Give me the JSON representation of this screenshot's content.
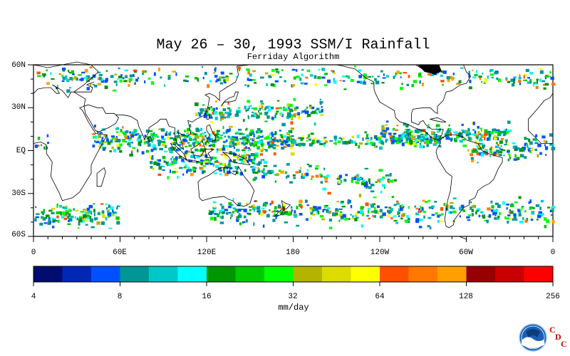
{
  "title": "May 26 – 30, 1993 SSM/I Rainfall",
  "subtitle": "Ferriday Algorithm",
  "lat_labels": [
    "60N",
    "30N",
    "EQ",
    "30S",
    "60S"
  ],
  "lon_labels": [
    "0",
    "60E",
    "120E",
    "180",
    "120W",
    "60W",
    "0"
  ],
  "colorbar": {
    "colors": [
      "#000c6e",
      "#0028b4",
      "#0050ff",
      "#009696",
      "#00c8c8",
      "#00ffff",
      "#009600",
      "#00c800",
      "#00ff00",
      "#b4b400",
      "#dcdc00",
      "#ffff00",
      "#ff5000",
      "#ff7800",
      "#ffa000",
      "#960000",
      "#c80000",
      "#ff0000"
    ],
    "tick_labels": [
      "4",
      "8",
      "16",
      "32",
      "64",
      "128",
      "256"
    ],
    "units": "mm/day"
  },
  "logo": {
    "name": "noaa-logo",
    "lettering": "NOAA"
  },
  "cdc": {
    "c1": "C",
    "d": "D",
    "c2": "C"
  }
}
